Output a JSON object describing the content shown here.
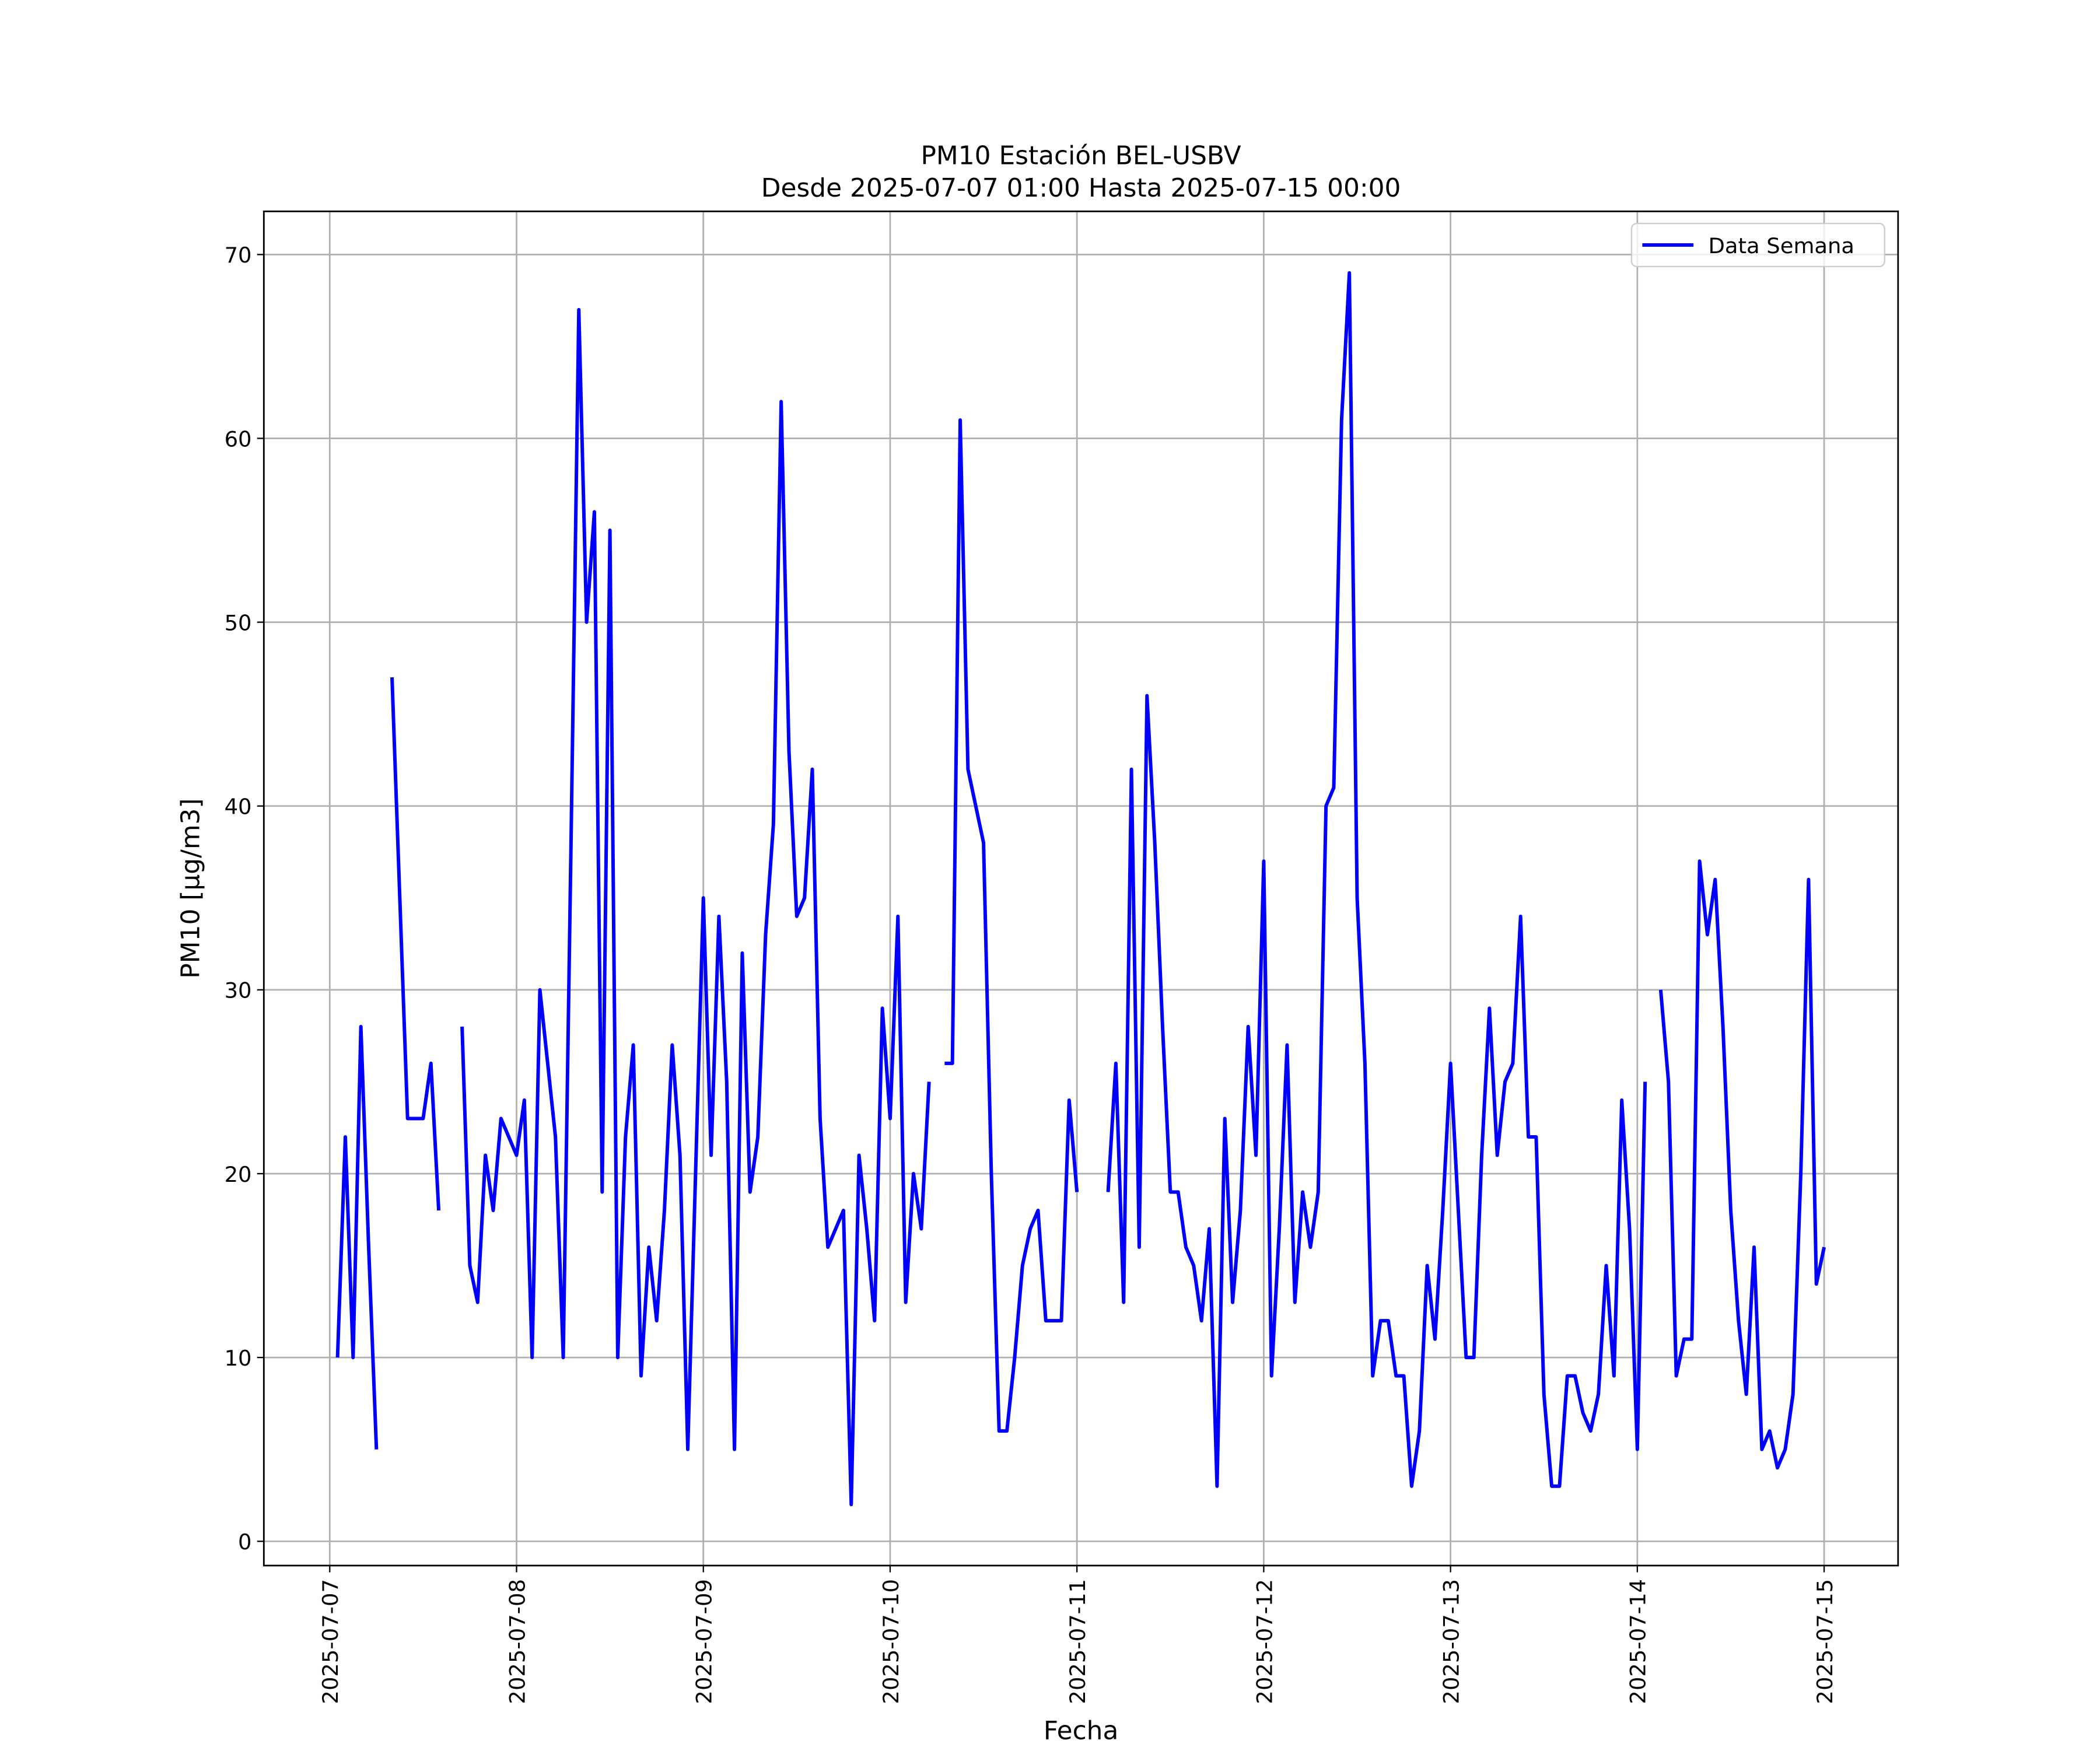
{
  "chart_data": {
    "type": "line",
    "title": "PM10 Estación BEL-USBV",
    "subtitle": "Desde 2025-07-07 01:00 Hasta 2025-07-15 00:00",
    "xlabel": "Fecha",
    "ylabel": "PM10 [μg/m3]",
    "x": [
      "2025-07-07 01:00",
      "2025-07-07 02:00",
      "2025-07-07 03:00",
      "2025-07-07 04:00",
      "2025-07-07 05:00",
      "2025-07-07 06:00",
      "2025-07-07 07:00",
      "2025-07-07 08:00",
      "2025-07-07 09:00",
      "2025-07-07 10:00",
      "2025-07-07 11:00",
      "2025-07-07 12:00",
      "2025-07-07 13:00",
      "2025-07-07 14:00",
      "2025-07-07 15:00",
      "2025-07-07 16:00",
      "2025-07-07 17:00",
      "2025-07-07 18:00",
      "2025-07-07 19:00",
      "2025-07-07 20:00",
      "2025-07-07 21:00",
      "2025-07-07 22:00",
      "2025-07-07 23:00",
      "2025-07-08 00:00",
      "2025-07-08 01:00",
      "2025-07-08 02:00",
      "2025-07-08 03:00",
      "2025-07-08 04:00",
      "2025-07-08 05:00",
      "2025-07-08 06:00",
      "2025-07-08 07:00",
      "2025-07-08 08:00",
      "2025-07-08 09:00",
      "2025-07-08 10:00",
      "2025-07-08 11:00",
      "2025-07-08 12:00",
      "2025-07-08 13:00",
      "2025-07-08 14:00",
      "2025-07-08 15:00",
      "2025-07-08 16:00",
      "2025-07-08 17:00",
      "2025-07-08 18:00",
      "2025-07-08 19:00",
      "2025-07-08 20:00",
      "2025-07-08 21:00",
      "2025-07-08 22:00",
      "2025-07-08 23:00",
      "2025-07-09 00:00",
      "2025-07-09 01:00",
      "2025-07-09 02:00",
      "2025-07-09 03:00",
      "2025-07-09 04:00",
      "2025-07-09 05:00",
      "2025-07-09 06:00",
      "2025-07-09 07:00",
      "2025-07-09 08:00",
      "2025-07-09 09:00",
      "2025-07-09 10:00",
      "2025-07-09 11:00",
      "2025-07-09 12:00",
      "2025-07-09 13:00",
      "2025-07-09 14:00",
      "2025-07-09 15:00",
      "2025-07-09 16:00",
      "2025-07-09 17:00",
      "2025-07-09 18:00",
      "2025-07-09 19:00",
      "2025-07-09 20:00",
      "2025-07-09 21:00",
      "2025-07-09 22:00",
      "2025-07-09 23:00",
      "2025-07-10 00:00",
      "2025-07-10 01:00",
      "2025-07-10 02:00",
      "2025-07-10 03:00",
      "2025-07-10 04:00",
      "2025-07-10 05:00",
      "2025-07-10 06:00",
      "2025-07-10 07:00",
      "2025-07-10 08:00",
      "2025-07-10 09:00",
      "2025-07-10 10:00",
      "2025-07-10 11:00",
      "2025-07-10 12:00",
      "2025-07-10 13:00",
      "2025-07-10 14:00",
      "2025-07-10 15:00",
      "2025-07-10 16:00",
      "2025-07-10 17:00",
      "2025-07-10 18:00",
      "2025-07-10 19:00",
      "2025-07-10 20:00",
      "2025-07-10 21:00",
      "2025-07-10 22:00",
      "2025-07-10 23:00",
      "2025-07-11 00:00",
      "2025-07-11 01:00",
      "2025-07-11 02:00",
      "2025-07-11 03:00",
      "2025-07-11 04:00",
      "2025-07-11 05:00",
      "2025-07-11 06:00",
      "2025-07-11 07:00",
      "2025-07-11 08:00",
      "2025-07-11 09:00",
      "2025-07-11 10:00",
      "2025-07-11 11:00",
      "2025-07-11 12:00",
      "2025-07-11 13:00",
      "2025-07-11 14:00",
      "2025-07-11 15:00",
      "2025-07-11 16:00",
      "2025-07-11 17:00",
      "2025-07-11 18:00",
      "2025-07-11 19:00",
      "2025-07-11 20:00",
      "2025-07-11 21:00",
      "2025-07-11 22:00",
      "2025-07-11 23:00",
      "2025-07-12 00:00",
      "2025-07-12 01:00",
      "2025-07-12 02:00",
      "2025-07-12 03:00",
      "2025-07-12 04:00",
      "2025-07-12 05:00",
      "2025-07-12 06:00",
      "2025-07-12 07:00",
      "2025-07-12 08:00",
      "2025-07-12 09:00",
      "2025-07-12 10:00",
      "2025-07-12 11:00",
      "2025-07-12 12:00",
      "2025-07-12 13:00",
      "2025-07-12 14:00",
      "2025-07-12 15:00",
      "2025-07-12 16:00",
      "2025-07-12 17:00",
      "2025-07-12 18:00",
      "2025-07-12 19:00",
      "2025-07-12 20:00",
      "2025-07-12 21:00",
      "2025-07-12 22:00",
      "2025-07-12 23:00",
      "2025-07-13 00:00",
      "2025-07-13 01:00",
      "2025-07-13 02:00",
      "2025-07-13 03:00",
      "2025-07-13 04:00",
      "2025-07-13 05:00",
      "2025-07-13 06:00",
      "2025-07-13 07:00",
      "2025-07-13 08:00",
      "2025-07-13 09:00",
      "2025-07-13 10:00",
      "2025-07-13 11:00",
      "2025-07-13 12:00",
      "2025-07-13 13:00",
      "2025-07-13 14:00",
      "2025-07-13 15:00",
      "2025-07-13 16:00",
      "2025-07-13 17:00",
      "2025-07-13 18:00",
      "2025-07-13 19:00",
      "2025-07-13 20:00",
      "2025-07-13 21:00",
      "2025-07-13 22:00",
      "2025-07-13 23:00",
      "2025-07-14 00:00",
      "2025-07-14 01:00",
      "2025-07-14 02:00",
      "2025-07-14 03:00",
      "2025-07-14 04:00",
      "2025-07-14 05:00",
      "2025-07-14 06:00",
      "2025-07-14 07:00",
      "2025-07-14 08:00",
      "2025-07-14 09:00",
      "2025-07-14 10:00",
      "2025-07-14 11:00",
      "2025-07-14 12:00",
      "2025-07-14 13:00",
      "2025-07-14 14:00",
      "2025-07-14 15:00",
      "2025-07-14 16:00",
      "2025-07-14 17:00",
      "2025-07-14 18:00",
      "2025-07-14 19:00",
      "2025-07-14 20:00",
      "2025-07-14 21:00",
      "2025-07-14 22:00",
      "2025-07-14 23:00",
      "2025-07-15 00:00"
    ],
    "series": [
      {
        "name": "Data Semana",
        "color": "#0000ff",
        "values": [
          10,
          22,
          10,
          28,
          16,
          5,
          null,
          47,
          35,
          23,
          23,
          23,
          26,
          18,
          null,
          null,
          28,
          15,
          13,
          21,
          18,
          23,
          22,
          21,
          24,
          10,
          30,
          26,
          22,
          10,
          38,
          67,
          50,
          56,
          19,
          55,
          10,
          22,
          27,
          9,
          16,
          12,
          18,
          27,
          21,
          5,
          20,
          35,
          21,
          34,
          25,
          5,
          32,
          19,
          22,
          33,
          39,
          62,
          43,
          34,
          35,
          42,
          23,
          16,
          17,
          18,
          2,
          21,
          17,
          12,
          29,
          23,
          34,
          13,
          20,
          17,
          25,
          null,
          26,
          26,
          61,
          42,
          40,
          38,
          20,
          6,
          6,
          10,
          15,
          17,
          18,
          12,
          12,
          12,
          24,
          19,
          null,
          null,
          null,
          19,
          26,
          13,
          42,
          16,
          46,
          38,
          28,
          19,
          19,
          16,
          15,
          12,
          17,
          3,
          23,
          13,
          18,
          28,
          21,
          37,
          9,
          17,
          27,
          13,
          19,
          16,
          19,
          40,
          41,
          61,
          69,
          35,
          26,
          9,
          12,
          12,
          9,
          9,
          3,
          6,
          15,
          11,
          18,
          26,
          18,
          10,
          10,
          21,
          29,
          21,
          25,
          26,
          34,
          22,
          22,
          8,
          3,
          3,
          9,
          9,
          7,
          6,
          8,
          15,
          9,
          24,
          17,
          5,
          25,
          null,
          30,
          25,
          9,
          11,
          11,
          37,
          33,
          36,
          28,
          18,
          12,
          8,
          16,
          5,
          6,
          4,
          5,
          8,
          20,
          36,
          14,
          16
        ]
      }
    ],
    "xlim": [
      "2025-07-06 15:32",
      "2025-07-15 09:30"
    ],
    "xticks": [
      "2025-07-07",
      "2025-07-08",
      "2025-07-09",
      "2025-07-10",
      "2025-07-11",
      "2025-07-12",
      "2025-07-13",
      "2025-07-14",
      "2025-07-15"
    ],
    "ylim": [
      -1.32,
      72.35
    ],
    "yticks": [
      0,
      10,
      20,
      30,
      40,
      50,
      60,
      70
    ],
    "grid": true,
    "legend": "upper right"
  }
}
